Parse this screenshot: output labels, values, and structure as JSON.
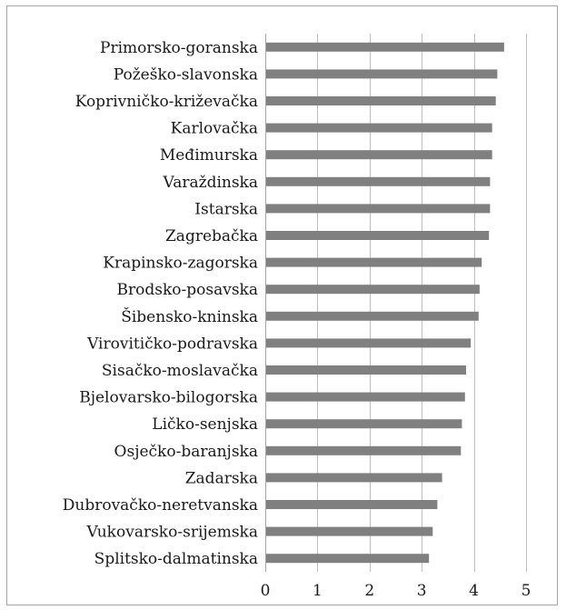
{
  "chart_data": {
    "type": "bar",
    "orientation": "horizontal",
    "categories": [
      "Primorsko-goranska",
      "Požeško-slavonska",
      "Koprivničko-križevačka",
      "Karlovačka",
      "Međimurska",
      "Varaždinska",
      "Istarska",
      "Zagrebačka",
      "Krapinsko-zagorska",
      "Brodsko-posavska",
      "Šibensko-kninska",
      "Virovitičko-podravska",
      "Sisačko-moslavačka",
      "Bjelovarsko-bilogorska",
      "Ličko-senjska",
      "Osječko-baranjska",
      "Zadarska",
      "Dubrovačko-neretvanska",
      "Vukovarsko-srijemska",
      "Splitsko-dalmatinska"
    ],
    "values": [
      4.58,
      4.45,
      4.42,
      4.35,
      4.35,
      4.31,
      4.31,
      4.29,
      4.15,
      4.11,
      4.09,
      3.94,
      3.85,
      3.83,
      3.77,
      3.75,
      3.39,
      3.3,
      3.21,
      3.14
    ],
    "xlim": [
      0,
      5
    ],
    "xticks": [
      "0",
      "1",
      "2",
      "3",
      "4",
      "5"
    ],
    "grid": true,
    "legend": "none",
    "title": "",
    "xlabel": "",
    "ylabel": "",
    "colors": {
      "bar": "#808080",
      "grid": "#bfbfbf",
      "frame": "#a6a6a6"
    }
  }
}
